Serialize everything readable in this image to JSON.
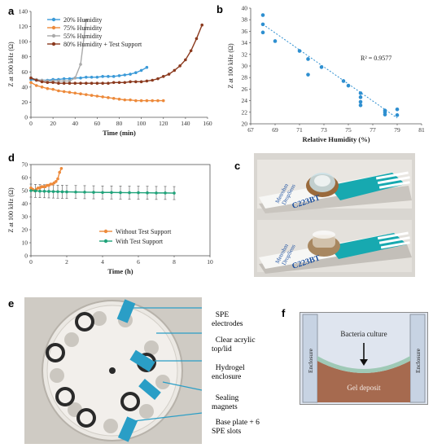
{
  "chart_data": [
    {
      "panel": "a",
      "type": "line",
      "xlabel": "Time (min)",
      "ylabel": "Z at 100 kHz (Ω)",
      "xlim": [
        0,
        160
      ],
      "ylim": [
        0,
        140
      ],
      "xticks": [
        0,
        20,
        40,
        60,
        80,
        100,
        120,
        140,
        160
      ],
      "yticks": [
        0,
        20,
        40,
        60,
        80,
        100,
        120,
        140
      ],
      "legend_position": "top-left",
      "series": [
        {
          "name": "20% Humidity",
          "color": "#3b9ad8",
          "x": [
            0,
            5,
            10,
            15,
            20,
            25,
            30,
            35,
            40,
            45,
            50,
            55,
            60,
            65,
            70,
            75,
            80,
            85,
            90,
            95,
            100,
            105
          ],
          "y": [
            50,
            49,
            49,
            49,
            50,
            50,
            51,
            51,
            52,
            52,
            53,
            53,
            53,
            54,
            54,
            54,
            55,
            56,
            57,
            59,
            62,
            66
          ]
        },
        {
          "name": "75% Humidity",
          "color": "#ed8a3b",
          "x": [
            0,
            5,
            10,
            15,
            20,
            25,
            30,
            35,
            40,
            45,
            50,
            55,
            60,
            65,
            70,
            75,
            80,
            85,
            90,
            95,
            100,
            105,
            110,
            115,
            120
          ],
          "y": [
            46,
            42,
            40,
            38,
            37,
            35,
            34,
            33,
            32,
            31,
            30,
            29,
            28,
            27,
            26,
            25,
            24,
            23,
            23,
            22,
            22,
            22,
            22,
            22,
            22
          ]
        },
        {
          "name": "55% Humidity",
          "color": "#a9a9a9",
          "x": [
            0,
            5,
            10,
            15,
            20,
            25,
            30,
            35,
            40,
            45,
            50
          ],
          "y": [
            52,
            50,
            49,
            48,
            48,
            48,
            48,
            48,
            52,
            70,
            128
          ]
        },
        {
          "name": "80% Humidity + Test Support",
          "color": "#8b3a1e",
          "x": [
            0,
            5,
            10,
            15,
            20,
            25,
            30,
            35,
            40,
            45,
            50,
            55,
            60,
            65,
            70,
            75,
            80,
            85,
            90,
            95,
            100,
            105,
            110,
            115,
            120,
            125,
            130,
            135,
            140,
            145,
            150,
            155
          ],
          "y": [
            52,
            49,
            47,
            46,
            46,
            45,
            45,
            45,
            45,
            45,
            45,
            45,
            45,
            45,
            45,
            46,
            46,
            46,
            47,
            47,
            47,
            48,
            49,
            51,
            54,
            57,
            62,
            68,
            76,
            88,
            104,
            122
          ]
        }
      ]
    },
    {
      "panel": "b",
      "type": "scatter",
      "xlabel": "Relative Humidity (%)",
      "ylabel": "Z at 100 kHz (Ω)",
      "xlim": [
        67,
        81
      ],
      "ylim": [
        20,
        40
      ],
      "xticks": [
        67,
        69,
        71,
        73,
        75,
        77,
        79,
        81
      ],
      "yticks": [
        20,
        22,
        24,
        26,
        28,
        30,
        32,
        34,
        36,
        38,
        40
      ],
      "annotation": "R² = 0.9577",
      "color": "#2e8fd0",
      "trendline": {
        "x": [
          68,
          79
        ],
        "y": [
          37.2,
          21.0
        ]
      },
      "points": [
        [
          68,
          38.8
        ],
        [
          68,
          37.2
        ],
        [
          68,
          35.8
        ],
        [
          69,
          34.3
        ],
        [
          71,
          32.6
        ],
        [
          71.7,
          31.2
        ],
        [
          71.7,
          28.5
        ],
        [
          72.8,
          29.8
        ],
        [
          74.6,
          27.4
        ],
        [
          75,
          26.6
        ],
        [
          76,
          25.3
        ],
        [
          76,
          24.6
        ],
        [
          76,
          23.8
        ],
        [
          76,
          23.2
        ],
        [
          78,
          22.3
        ],
        [
          78,
          22.0
        ],
        [
          78,
          21.6
        ],
        [
          79,
          22.5
        ],
        [
          79,
          21.5
        ]
      ]
    },
    {
      "panel": "d",
      "type": "line",
      "xlabel": "Time (h)",
      "ylabel": "Z at 100 kHz (Ω)",
      "xlim": [
        0,
        10
      ],
      "ylim": [
        0,
        70
      ],
      "xticks": [
        0,
        2,
        4,
        6,
        8,
        10
      ],
      "yticks": [
        0,
        10,
        20,
        30,
        40,
        50,
        60,
        70
      ],
      "legend_position": "bottom-center",
      "error_half_width": 5,
      "series": [
        {
          "name": "Without Test Support",
          "color": "#ed8a3b",
          "x": [
            0,
            0.1,
            0.2,
            0.3,
            0.4,
            0.5,
            0.6,
            0.7,
            0.8,
            0.9,
            1.0,
            1.1,
            1.2,
            1.3,
            1.4,
            1.5,
            1.6,
            1.7
          ],
          "y": [
            52,
            51,
            50,
            51,
            52,
            52,
            53,
            53,
            53,
            54,
            54,
            55,
            55,
            56,
            57,
            59,
            64,
            67
          ]
        },
        {
          "name": "With Test Support",
          "color": "#1fa37a",
          "x": [
            0,
            0.25,
            0.5,
            0.75,
            1,
            1.25,
            1.5,
            1.75,
            2,
            2.5,
            3,
            3.5,
            4,
            4.5,
            5,
            5.5,
            6,
            6.5,
            7,
            7.5,
            8
          ],
          "y": [
            50,
            49.8,
            49.6,
            49.5,
            49.4,
            49.3,
            49.2,
            49.1,
            49,
            48.9,
            48.8,
            48.7,
            48.6,
            48.6,
            48.5,
            48.4,
            48.4,
            48.3,
            48.2,
            48.2,
            48.1
          ]
        }
      ]
    }
  ],
  "panels": {
    "a": "a",
    "b": "b",
    "c": "c",
    "d": "d",
    "e": "e",
    "f": "f"
  },
  "photo_c": {
    "strip_label": "C223BT",
    "brand_line1": "Metrohm",
    "brand_line2": "DropSens"
  },
  "photo_e": {
    "callouts": [
      "SPE\nelectrodes",
      "Clear acrylic\ntop/lid",
      "Hydrogel\nenclosure",
      "Sealing\nmagnets",
      "Base plate + 6\nSPE slots"
    ]
  },
  "diagram_f": {
    "culture_label": "Bacteria culture",
    "deposit_label": "Gel deposit",
    "wall_label_left": "Enclosure",
    "wall_label_right": "Enclosure"
  }
}
